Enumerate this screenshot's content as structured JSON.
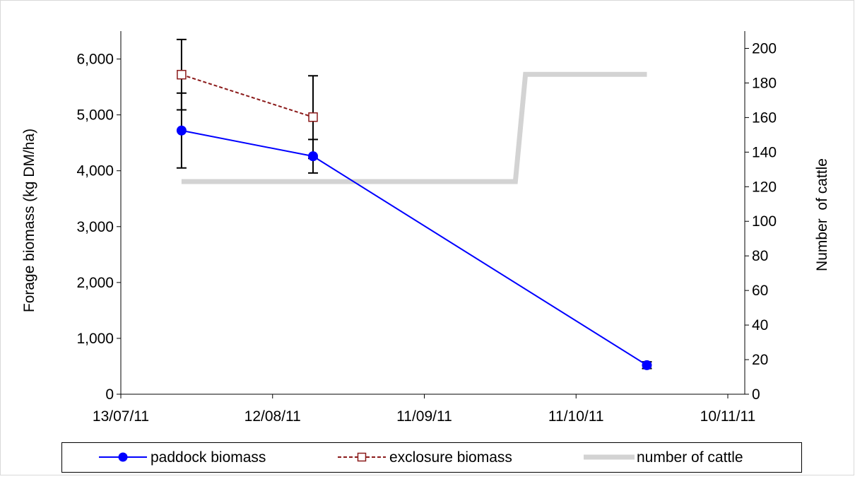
{
  "chart_data": {
    "type": "line",
    "title": "",
    "xlabel": "",
    "ylabel": "Forage biomass (kg DM/ha)",
    "y2label": "Number  of cattle",
    "x_ticks": [
      "13/07/11",
      "12/08/11",
      "11/09/11",
      "11/10/11",
      "10/11/11"
    ],
    "x_tick_dates": [
      "2011-07-13",
      "2011-08-12",
      "2011-09-11",
      "2011-10-11",
      "2011-11-10"
    ],
    "xlim": [
      "2011-07-13",
      "2011-11-10"
    ],
    "ylim": [
      0,
      6500
    ],
    "y_ticks": [
      "0",
      "1,000",
      "2,000",
      "3,000",
      "4,000",
      "5,000",
      "6,000"
    ],
    "y_tick_values": [
      0,
      1000,
      2000,
      3000,
      4000,
      5000,
      6000
    ],
    "y2lim": [
      0,
      210
    ],
    "y2_ticks": [
      "0",
      "20",
      "40",
      "60",
      "80",
      "100",
      "120",
      "140",
      "160",
      "180",
      "200"
    ],
    "y2_tick_values": [
      0,
      20,
      40,
      60,
      80,
      100,
      120,
      140,
      160,
      180,
      200
    ],
    "grid": false,
    "legend_position": "bottom",
    "series": [
      {
        "name": "paddock biomass",
        "axis": "left",
        "color": "#0000ff",
        "marker": "filled-circle",
        "line_style": "solid",
        "x": [
          "2011-07-25",
          "2011-08-20",
          "2011-10-25"
        ],
        "y": [
          4720,
          4260,
          520
        ],
        "error": [
          670,
          300,
          60
        ]
      },
      {
        "name": "exclosure biomass",
        "axis": "left",
        "color": "#8b1a1a",
        "marker": "open-square",
        "line_style": "dashed",
        "x": [
          "2011-07-25",
          "2011-08-20"
        ],
        "y": [
          5720,
          4960
        ],
        "error": [
          630,
          740
        ]
      },
      {
        "name": "number of cattle",
        "axis": "right",
        "color": "#d3d3d3",
        "marker": "none",
        "line_style": "thick-solid",
        "x": [
          "2011-07-25",
          "2011-09-29",
          "2011-10-01",
          "2011-10-25"
        ],
        "y": [
          123,
          123,
          185,
          185
        ]
      }
    ]
  }
}
